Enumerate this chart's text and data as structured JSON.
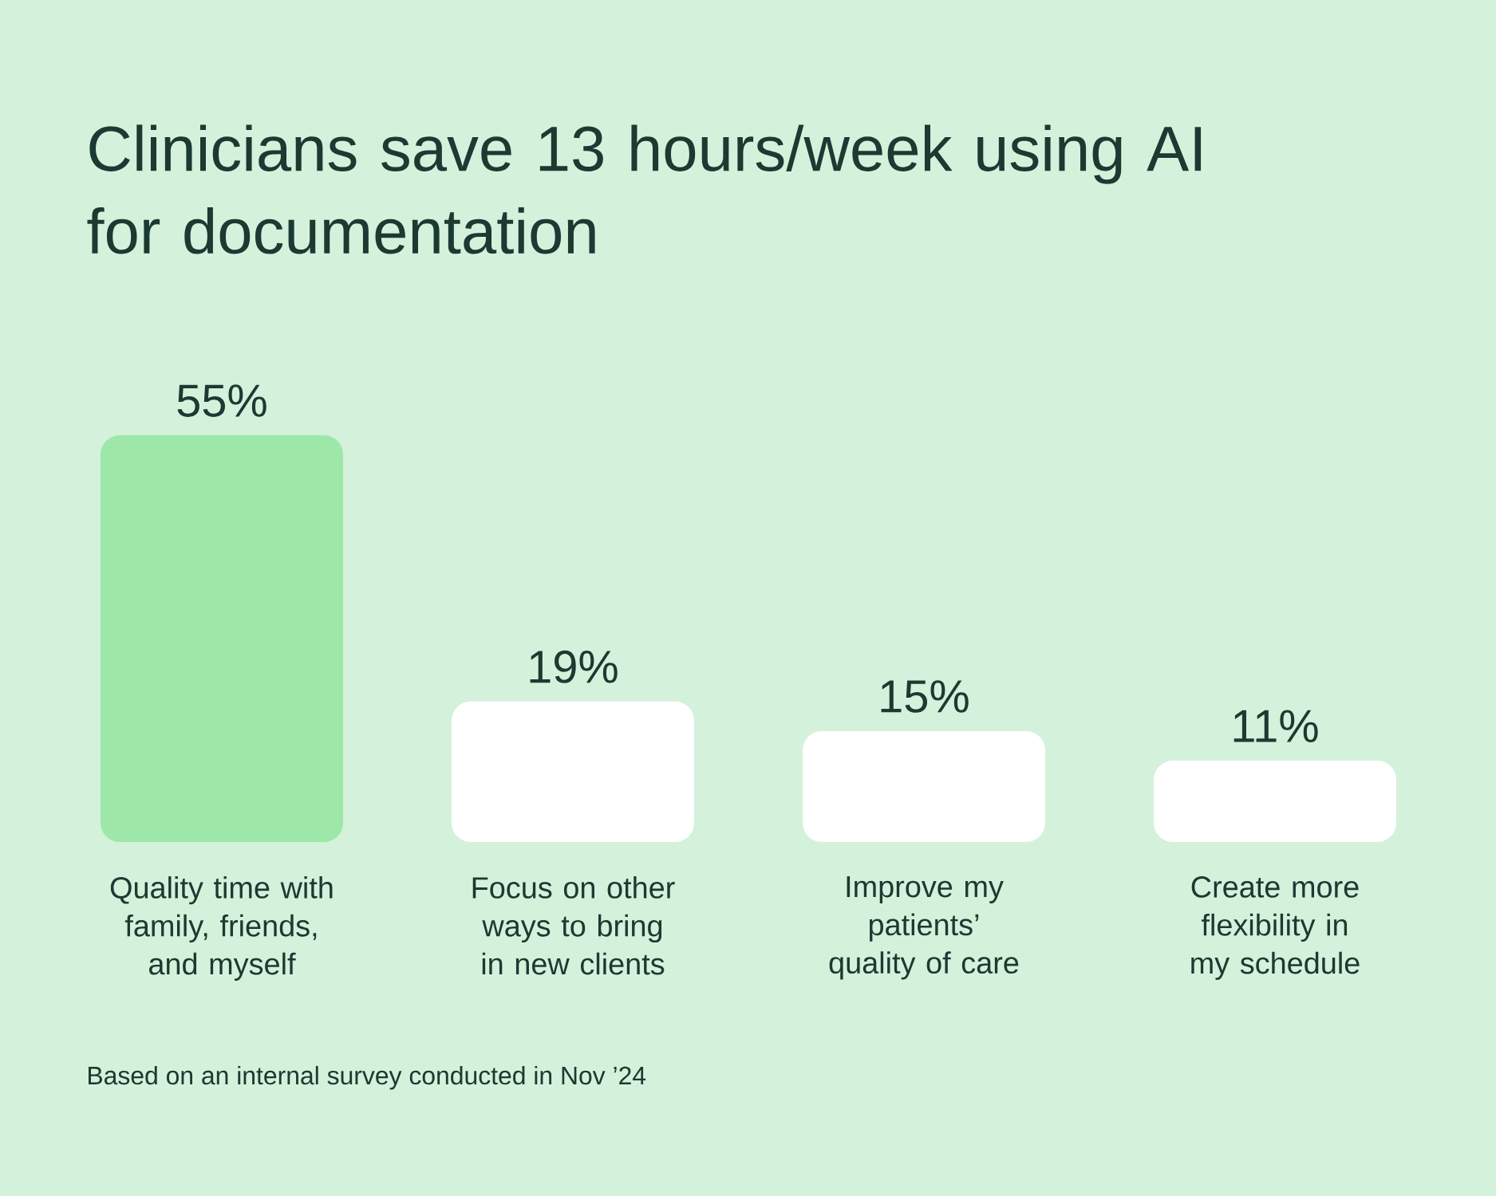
{
  "chart_data": {
    "type": "bar",
    "title": "Clinicians save 13 hours/week using AI for documentation",
    "categories": [
      "Quality time with family, friends, and myself",
      "Focus on other ways to bring in new clients",
      "Improve my patients’ quality of care",
      "Create more flexibility in my schedule"
    ],
    "values": [
      55,
      19,
      15,
      11
    ],
    "colors": [
      "#9de8a8",
      "#ffffff",
      "#ffffff",
      "#ffffff"
    ],
    "value_labels": [
      "55%",
      "19%",
      "15%",
      "11%"
    ],
    "annotations": [
      "Based on an internal survey conducted in Nov ’24"
    ]
  }
}
